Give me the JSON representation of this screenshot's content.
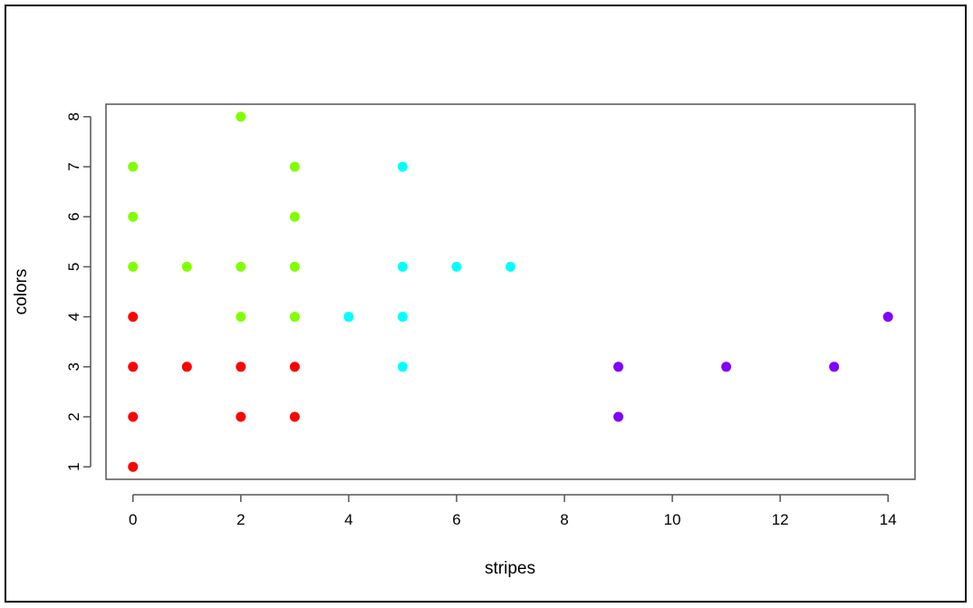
{
  "chart_data": {
    "type": "scatter",
    "title": "",
    "xlabel": "stripes",
    "ylabel": "colors",
    "xlim": [
      -0.5,
      14.5
    ],
    "ylim": [
      0.75,
      8.25
    ],
    "xticks": [
      0,
      2,
      4,
      6,
      8,
      10,
      12,
      14
    ],
    "yticks": [
      1,
      2,
      3,
      4,
      5,
      6,
      7,
      8
    ],
    "grid": false,
    "points": [
      {
        "x": 0,
        "y": 1,
        "color": "#ff0000"
      },
      {
        "x": 0,
        "y": 2,
        "color": "#ff0000"
      },
      {
        "x": 0,
        "y": 3,
        "color": "#ff0000"
      },
      {
        "x": 0,
        "y": 4,
        "color": "#ff0000"
      },
      {
        "x": 1,
        "y": 3,
        "color": "#ff0000"
      },
      {
        "x": 2,
        "y": 2,
        "color": "#ff0000"
      },
      {
        "x": 2,
        "y": 3,
        "color": "#ff0000"
      },
      {
        "x": 3,
        "y": 2,
        "color": "#ff0000"
      },
      {
        "x": 3,
        "y": 3,
        "color": "#ff0000"
      },
      {
        "x": 0,
        "y": 5,
        "color": "#80ff00"
      },
      {
        "x": 0,
        "y": 6,
        "color": "#80ff00"
      },
      {
        "x": 0,
        "y": 7,
        "color": "#80ff00"
      },
      {
        "x": 1,
        "y": 5,
        "color": "#80ff00"
      },
      {
        "x": 2,
        "y": 4,
        "color": "#80ff00"
      },
      {
        "x": 2,
        "y": 5,
        "color": "#80ff00"
      },
      {
        "x": 2,
        "y": 8,
        "color": "#80ff00"
      },
      {
        "x": 3,
        "y": 4,
        "color": "#80ff00"
      },
      {
        "x": 3,
        "y": 5,
        "color": "#80ff00"
      },
      {
        "x": 3,
        "y": 6,
        "color": "#80ff00"
      },
      {
        "x": 3,
        "y": 7,
        "color": "#80ff00"
      },
      {
        "x": 4,
        "y": 4,
        "color": "#00ffff"
      },
      {
        "x": 5,
        "y": 3,
        "color": "#00ffff"
      },
      {
        "x": 5,
        "y": 4,
        "color": "#00ffff"
      },
      {
        "x": 5,
        "y": 5,
        "color": "#00ffff"
      },
      {
        "x": 5,
        "y": 7,
        "color": "#00ffff"
      },
      {
        "x": 6,
        "y": 5,
        "color": "#00ffff"
      },
      {
        "x": 7,
        "y": 5,
        "color": "#00ffff"
      },
      {
        "x": 9,
        "y": 2,
        "color": "#8000ff"
      },
      {
        "x": 9,
        "y": 3,
        "color": "#8000ff"
      },
      {
        "x": 11,
        "y": 3,
        "color": "#8000ff"
      },
      {
        "x": 13,
        "y": 3,
        "color": "#8000ff"
      },
      {
        "x": 14,
        "y": 4,
        "color": "#8000ff"
      }
    ]
  }
}
